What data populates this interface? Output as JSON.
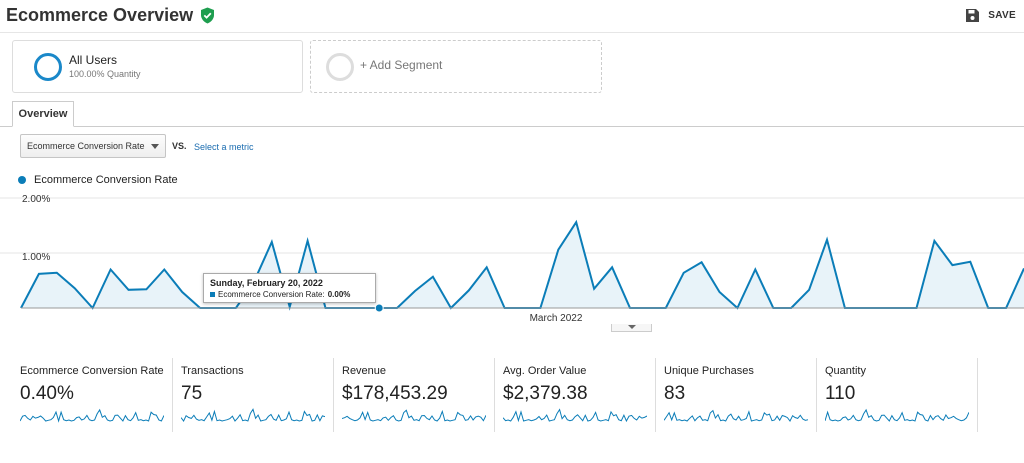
{
  "header": {
    "title": "Ecommerce Overview",
    "save_label": "SAVE"
  },
  "segments": [
    {
      "name": "All Users",
      "sub": "100.00% Quantity"
    },
    {
      "name": "+ Add Segment"
    }
  ],
  "tabs": [
    {
      "label": "Overview"
    }
  ],
  "controls": {
    "metric_select": "Ecommerce Conversion Rate",
    "vs": "VS.",
    "select_metric": "Select a metric"
  },
  "legend": {
    "series": "Ecommerce Conversion Rate"
  },
  "chart_data": {
    "type": "area",
    "series": [
      {
        "name": "Ecommerce Conversion Rate",
        "values": [
          0.0,
          0.62,
          0.64,
          0.36,
          0.0,
          0.7,
          0.33,
          0.34,
          0.7,
          0.29,
          0.0,
          0.0,
          0.0,
          0.47,
          1.2,
          0.02,
          1.22,
          0.0,
          0.0,
          0.0,
          0.0,
          0.0,
          0.31,
          0.57,
          0.0,
          0.32,
          0.74,
          0.0,
          0.0,
          0.0,
          1.06,
          1.56,
          0.35,
          0.74,
          0.0,
          0.0,
          0.0,
          0.64,
          0.83,
          0.29,
          0.0,
          0.7,
          0.0,
          0.0,
          0.33,
          1.24,
          0.0,
          0.0,
          0.0,
          0.0,
          0.0,
          1.22,
          0.78,
          0.84,
          0.0,
          0.0,
          0.72
        ]
      }
    ],
    "y_ticks": [
      "2.00%",
      "1.00%"
    ],
    "ylim": [
      0,
      2.0
    ],
    "x_ticks": [
      "March 2022"
    ],
    "tooltip": {
      "date": "Sunday, February 20, 2022",
      "label": "Ecommerce Conversion Rate:",
      "value": "0.00%"
    },
    "color": "#0b7db8",
    "fill": "#e8f3f9"
  },
  "scorecards": [
    {
      "label": "Ecommerce Conversion Rate",
      "value": "0.40%"
    },
    {
      "label": "Transactions",
      "value": "75"
    },
    {
      "label": "Revenue",
      "value": "$178,453.29"
    },
    {
      "label": "Avg. Order Value",
      "value": "$2,379.38"
    },
    {
      "label": "Unique Purchases",
      "value": "83"
    },
    {
      "label": "Quantity",
      "value": "110"
    }
  ],
  "colors": {
    "accent": "#1a88c9",
    "link": "#1a6cb0",
    "verified": "#1e9e4f"
  },
  "icons": {
    "title_badge": "verified-shield-icon",
    "save": "floppy-disk-icon"
  }
}
